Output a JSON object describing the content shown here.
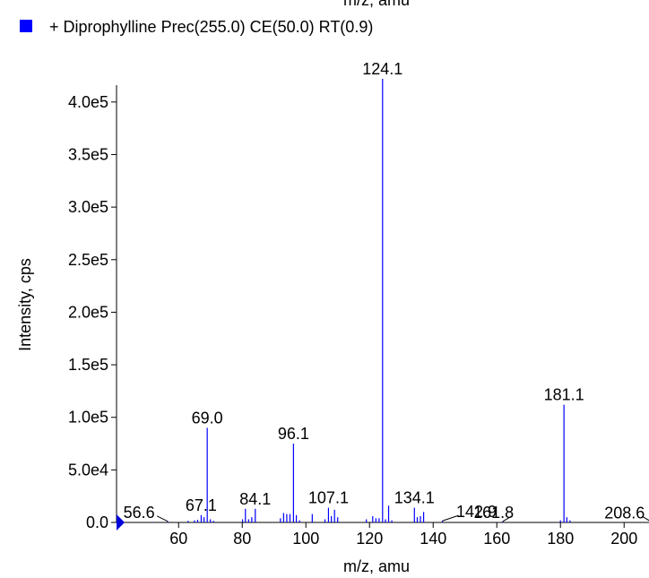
{
  "chart_data": {
    "type": "spectrum",
    "header_text": "m/z, amu",
    "xlabel": "m/z, amu",
    "ylabel": "Intensity, cps",
    "xlim": [
      40.5,
      208
    ],
    "ylim": [
      0,
      425000
    ],
    "xticks": [
      60,
      80,
      100,
      120,
      140,
      160,
      180,
      200
    ],
    "yticks": [
      {
        "value": 0,
        "label": "0.0"
      },
      {
        "value": 50000,
        "label": "5.0e4"
      },
      {
        "value": 100000,
        "label": "1.0e5"
      },
      {
        "value": 150000,
        "label": "1.5e5"
      },
      {
        "value": 200000,
        "label": "2.0e5"
      },
      {
        "value": 250000,
        "label": "2.5e5"
      },
      {
        "value": 300000,
        "label": "3.0e5"
      },
      {
        "value": 350000,
        "label": "3.5e5"
      },
      {
        "value": 400000,
        "label": "4.0e5"
      }
    ],
    "series": [
      {
        "name": "+ Diprophylline Prec(255.0) CE(50.0) RT(0.9)",
        "color": "#0000ff",
        "x": [
          52,
          56.6,
          63,
          65,
          66,
          67.1,
          68,
          69.0,
          70,
          71,
          80.1,
          81,
          82,
          83,
          84.1,
          92,
          93,
          94,
          95,
          96.1,
          97,
          98,
          102,
          106,
          107.1,
          108,
          109,
          110,
          119,
          121,
          122,
          123,
          124.1,
          125,
          126,
          127,
          134.1,
          135,
          136,
          137,
          142.9,
          161.8,
          180,
          181.1,
          182,
          183,
          208.6
        ],
        "values": [
          500,
          1000,
          1500,
          2000,
          2500,
          7000,
          5000,
          90000,
          3000,
          1500,
          3000,
          13000,
          3000,
          5000,
          13000,
          4000,
          9000,
          8000,
          8000,
          75000,
          7000,
          2000,
          8000,
          3000,
          14000,
          6000,
          12000,
          5000,
          3000,
          6000,
          4000,
          4000,
          422000,
          3000,
          16000,
          2000,
          14000,
          5000,
          6000,
          10000,
          1500,
          800,
          2000,
          112000,
          5000,
          2000,
          500
        ],
        "value_labels": [
          null,
          "56.6",
          null,
          null,
          null,
          "67.1",
          null,
          "69.0",
          null,
          null,
          null,
          null,
          null,
          null,
          "84.1",
          null,
          null,
          null,
          null,
          "96.1",
          null,
          null,
          null,
          null,
          "107.1",
          null,
          null,
          null,
          null,
          null,
          null,
          null,
          "124.1",
          null,
          null,
          null,
          "134.1",
          null,
          null,
          null,
          "142.9",
          "161.8",
          null,
          "181.1",
          null,
          null,
          "208.6"
        ]
      }
    ]
  }
}
